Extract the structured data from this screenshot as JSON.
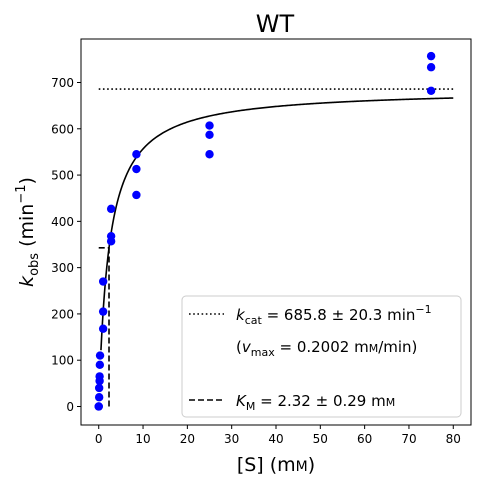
{
  "chart_data": {
    "type": "scatter",
    "title": "WT",
    "xlabel": {
      "main": "[S] (m",
      "unit": "M",
      "close": ")"
    },
    "ylabel": {
      "k": "k",
      "sub": "obs",
      "rest": " (min",
      "sup": "−1",
      "close": ")"
    },
    "xlim": [
      -4,
      84
    ],
    "ylim": [
      -40,
      794
    ],
    "xticks": [
      0,
      10,
      20,
      30,
      40,
      50,
      60,
      70,
      80
    ],
    "yticks": [
      0,
      100,
      200,
      300,
      400,
      500,
      600,
      700
    ],
    "points_color": "#0000ff",
    "points": [
      {
        "x": 0,
        "y": 0
      },
      {
        "x": 0,
        "y": 0
      },
      {
        "x": 0.1,
        "y": 20
      },
      {
        "x": 0.1,
        "y": 40
      },
      {
        "x": 0.2,
        "y": 55
      },
      {
        "x": 0.2,
        "y": 65
      },
      {
        "x": 0.25,
        "y": 90
      },
      {
        "x": 0.3,
        "y": 110
      },
      {
        "x": 1.0,
        "y": 168
      },
      {
        "x": 1.0,
        "y": 205
      },
      {
        "x": 1.0,
        "y": 270
      },
      {
        "x": 2.8,
        "y": 357
      },
      {
        "x": 2.8,
        "y": 368
      },
      {
        "x": 2.8,
        "y": 427
      },
      {
        "x": 8.5,
        "y": 457
      },
      {
        "x": 8.5,
        "y": 513
      },
      {
        "x": 8.5,
        "y": 545
      },
      {
        "x": 25,
        "y": 545
      },
      {
        "x": 25,
        "y": 587
      },
      {
        "x": 25,
        "y": 607
      },
      {
        "x": 75,
        "y": 682
      },
      {
        "x": 75,
        "y": 733
      },
      {
        "x": 75,
        "y": 757
      }
    ],
    "fit": {
      "vmax": 685.8,
      "km": 2.32,
      "x_range": [
        0.5,
        80
      ]
    },
    "kcat_line": {
      "y": 685.8,
      "x_range": [
        0,
        80
      ]
    },
    "km_line": {
      "x": 2.32,
      "y_from": 0,
      "y_to": 342.9,
      "hx_from": 0
    },
    "legend": {
      "placement": "lower-right",
      "kcat": {
        "k": "k",
        "sub": "cat",
        "rest": " = 685.8 ± 20.3 min",
        "sup": "−1"
      },
      "vmax": {
        "open": "(",
        "v": "v",
        "sub": "max",
        "rest": " = 0.2002 m",
        "unit": "M",
        "close": "/min)"
      },
      "km": {
        "k": "K",
        "sub": "M",
        "rest": " = 2.32 ± 0.29 m",
        "unit": "M"
      }
    }
  }
}
